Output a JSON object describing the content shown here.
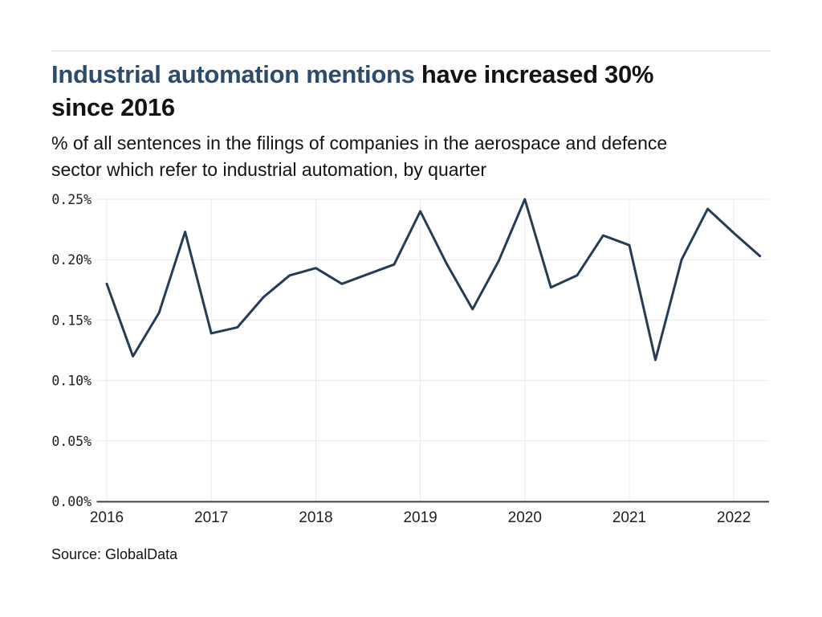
{
  "page": {
    "title_accent": "Industrial automation mentions ",
    "title_rest_line1": "have increased 30%",
    "title_rest_line2": "since 2016",
    "subtitle_line1": "% of all sentences in the filings of companies in the aerospace and defence",
    "subtitle_line2": "sector which refer to industrial automation, by quarter",
    "source": "Source: GlobalData"
  },
  "colors": {
    "title_accent": "#2b4c6b",
    "text": "#131313",
    "line": "#243c55",
    "grid": "#e9e9e9",
    "axis": "#404040",
    "divider": "#dedede"
  },
  "chart_data": {
    "type": "line",
    "title": "Industrial automation mentions have increased 30% since 2016",
    "subtitle": "% of all sentences in the filings of companies in the aerospace and defence sector which refer to industrial automation, by quarter",
    "x": [
      "2016 Q1",
      "2016 Q2",
      "2016 Q3",
      "2016 Q4",
      "2017 Q1",
      "2017 Q2",
      "2017 Q3",
      "2017 Q4",
      "2018 Q1",
      "2018 Q2",
      "2018 Q3",
      "2018 Q4",
      "2019 Q1",
      "2019 Q2",
      "2019 Q3",
      "2019 Q4",
      "2020 Q1",
      "2020 Q2",
      "2020 Q3",
      "2020 Q4",
      "2021 Q1",
      "2021 Q2",
      "2021 Q3",
      "2021 Q4",
      "2022 Q1",
      "2022 Q2"
    ],
    "values": [
      0.18,
      0.12,
      0.156,
      0.223,
      0.139,
      0.144,
      0.169,
      0.187,
      0.193,
      0.18,
      0.188,
      0.196,
      0.24,
      0.197,
      0.159,
      0.199,
      0.25,
      0.177,
      0.187,
      0.22,
      0.212,
      0.117,
      0.2,
      0.242,
      0.222,
      0.203
    ],
    "unit": "%",
    "x_tick_labels": [
      "2016",
      "2017",
      "2018",
      "2019",
      "2020",
      "2021",
      "2022"
    ],
    "y_tick_labels": [
      "0.00%",
      "0.05%",
      "0.10%",
      "0.15%",
      "0.20%",
      "0.25%"
    ],
    "y_tick_values": [
      0,
      0.05,
      0.1,
      0.15,
      0.2,
      0.25
    ],
    "ylim": [
      0,
      0.25
    ],
    "grid": true,
    "legend": "none",
    "line_color": "#243c55",
    "source": "Source: GlobalData"
  }
}
